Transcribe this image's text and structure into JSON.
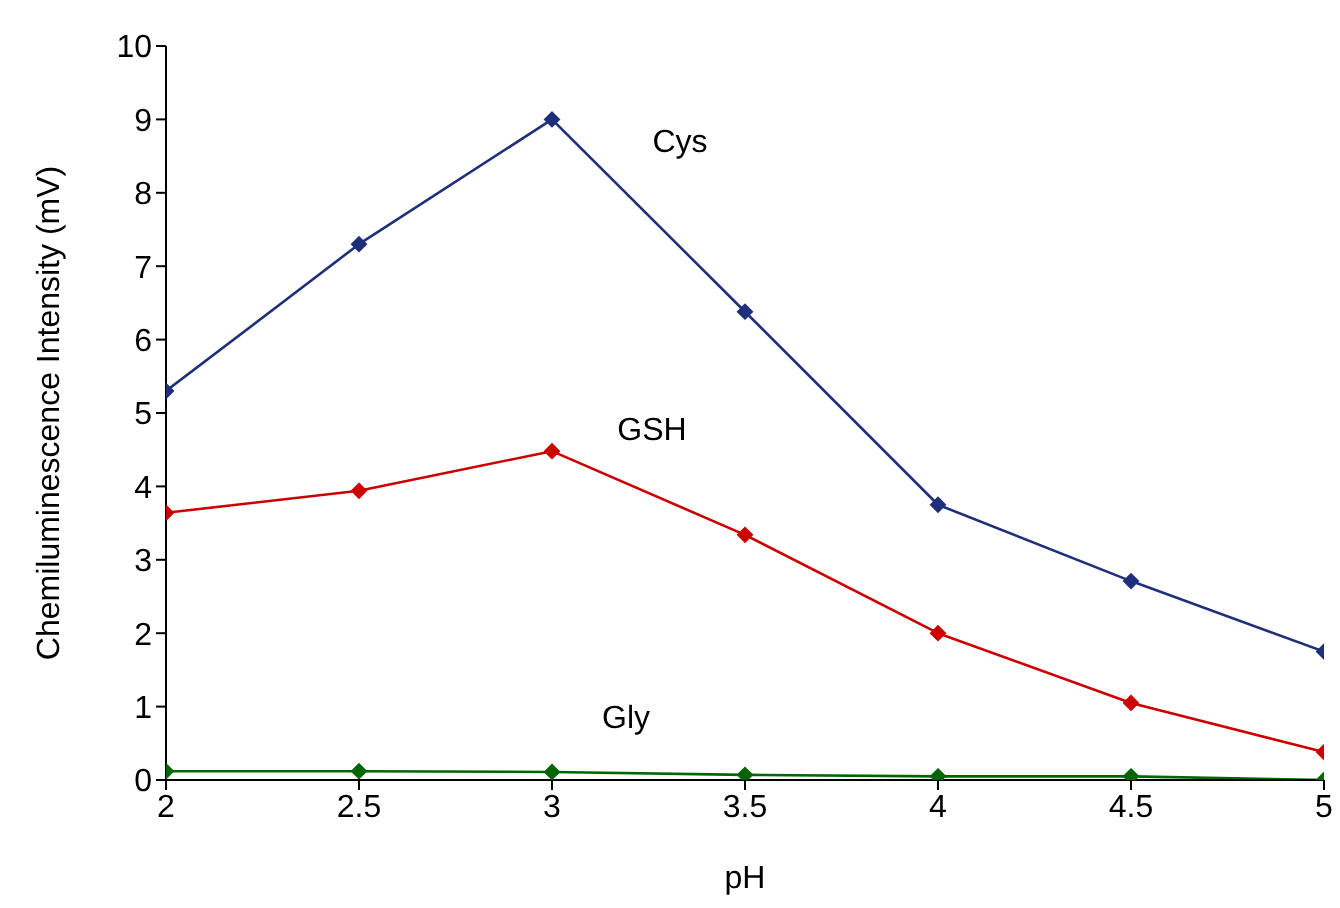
{
  "chart_data": {
    "type": "line",
    "xlabel": "pH",
    "ylabel": "Chemiluminescence Intensity (mV)",
    "x": [
      2,
      2.5,
      3,
      3.5,
      4,
      4.5,
      5
    ],
    "series": [
      {
        "name": "Cys",
        "color": "#1f2f7a",
        "values": [
          5.3,
          7.3,
          9.0,
          6.38,
          3.75,
          2.71,
          1.75
        ]
      },
      {
        "name": "GSH",
        "color": "#cc0000",
        "values": [
          3.64,
          3.94,
          4.48,
          3.34,
          2.0,
          1.05,
          0.38
        ]
      },
      {
        "name": "Gly",
        "color": "#006600",
        "values": [
          0.12,
          0.12,
          0.11,
          0.07,
          0.05,
          0.05,
          0.0
        ]
      }
    ],
    "xlim": [
      2,
      5
    ],
    "xticks": [
      2,
      2.5,
      3,
      3.5,
      4,
      4.5,
      5
    ],
    "ylim": [
      0,
      10
    ],
    "yticks": [
      0,
      1,
      2,
      3,
      4,
      5,
      6,
      7,
      8,
      9,
      10
    ],
    "grid": false,
    "legend": false,
    "marker": "diamond",
    "line_style": "solid"
  }
}
